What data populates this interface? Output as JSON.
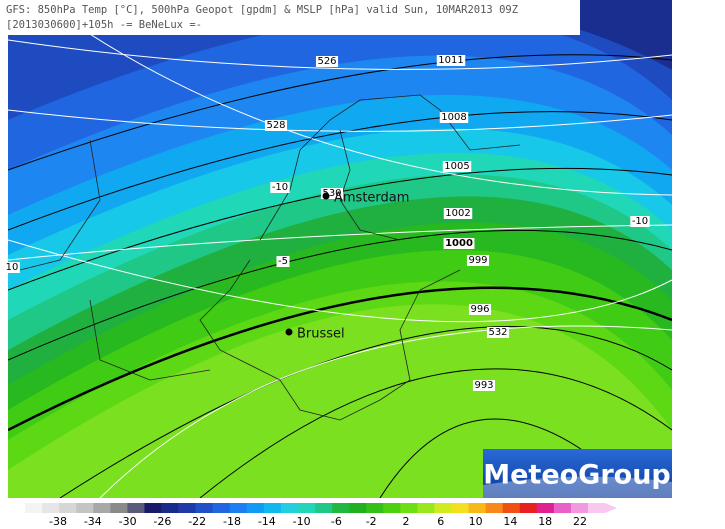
{
  "header": {
    "line1": "GFS: 850hPa Temp [°C], 500hPa Geopot [gpdm] & MSLP [hPa] valid Sun, 10MAR2013 09Z",
    "line2": "[2013030600]+105h -= BeNeLux =-"
  },
  "contour_labels": [
    "526",
    "1011",
    "528",
    "1008",
    "1005",
    "-10",
    "530",
    "1002",
    "-10",
    "1000",
    "-5",
    "999",
    "10",
    "996",
    "532",
    "993"
  ],
  "cities": [
    "Amsterdam",
    "Brussel"
  ],
  "logo": "MeteoGroup",
  "legend": {
    "labels": [
      -38,
      -34,
      -30,
      -26,
      -22,
      -18,
      -14,
      -10,
      -6,
      -2,
      2,
      6,
      10,
      14,
      18,
      22
    ],
    "colors": [
      "#ffffff",
      "#f4f4f4",
      "#e6e6e6",
      "#d6d6d6",
      "#c4c4c4",
      "#a8a8a8",
      "#8a8a8a",
      "#5a5a7a",
      "#1a1a6a",
      "#1a2a8a",
      "#1e3aa8",
      "#2050c8",
      "#2066e0",
      "#1e80f0",
      "#109cf4",
      "#10b8f0",
      "#20d0e0",
      "#20d8b8",
      "#20c888",
      "#20b840",
      "#20b020",
      "#34c018",
      "#4cd010",
      "#6ce014",
      "#9ae81c",
      "#d0ec20",
      "#f4e020",
      "#f8b818",
      "#f88818",
      "#f05010",
      "#e82020",
      "#e02090",
      "#e860c8",
      "#f098e0",
      "#f8c8f0"
    ]
  }
}
